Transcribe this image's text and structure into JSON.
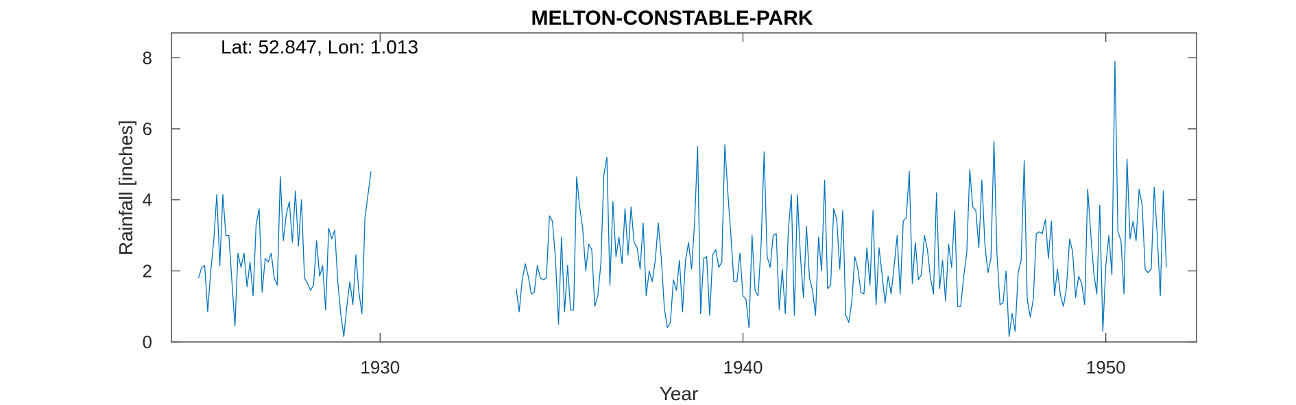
{
  "chart_data": {
    "type": "line",
    "title": "MELTON-CONSTABLE-PARK",
    "annotation": "Lat: 52.847, Lon: 1.013",
    "xlabel": "Year",
    "ylabel": "Rainfall [inches]",
    "xlim": [
      1924.25,
      1952.5
    ],
    "ylim": [
      0,
      8.7
    ],
    "xticks": [
      1930,
      1940,
      1950
    ],
    "yticks": [
      0,
      2,
      4,
      6,
      8
    ],
    "grid": false,
    "line_color": "#0072BD",
    "series": [
      {
        "segments": [
          {
            "start_year": 1925.0,
            "values": [
              1.8,
              2.1,
              2.15,
              0.85,
              2.0,
              2.85,
              4.15,
              2.15,
              4.15,
              3.0,
              3.0,
              1.7,
              0.45,
              2.5,
              2.1,
              2.5,
              1.55,
              2.25,
              1.3,
              3.3,
              3.75,
              1.4,
              2.35,
              2.25,
              2.5,
              1.8,
              1.6,
              4.65,
              2.85,
              3.6,
              3.95,
              2.8,
              4.25,
              2.7,
              4.0,
              1.8,
              1.65,
              1.45,
              1.6,
              2.85,
              1.85,
              2.15,
              0.9,
              3.2,
              2.9,
              3.15,
              1.7,
              0.8,
              0.15,
              1.0,
              1.7,
              1.05,
              2.45,
              1.4,
              0.8,
              3.5,
              4.15,
              4.8
            ]
          },
          {
            "start_year": 1933.75,
            "values": [
              1.5,
              0.85,
              1.75,
              2.2,
              1.85,
              1.35,
              1.4,
              2.15,
              1.8,
              1.75,
              1.8,
              3.55,
              3.4,
              2.35,
              0.5,
              2.95,
              0.85,
              2.15,
              0.9,
              0.9,
              4.65,
              3.8,
              3.2,
              2.0,
              2.75,
              2.6,
              1.0,
              1.3,
              2.2,
              4.7,
              5.2,
              1.6,
              3.95,
              2.4,
              2.95,
              2.2,
              3.75,
              2.45,
              3.8,
              2.8,
              2.65,
              2.05,
              3.35,
              1.3,
              2.0,
              1.7,
              2.3,
              3.35,
              2.35,
              0.95,
              0.4,
              0.55,
              1.75,
              1.45,
              2.3,
              0.85,
              2.3,
              2.8,
              2.05,
              3.35,
              5.5,
              0.8,
              2.35,
              2.4,
              0.75,
              2.45,
              2.6,
              2.1,
              2.25,
              5.55,
              4.2,
              3.0,
              1.7,
              1.7,
              2.5,
              1.3,
              1.2,
              0.4,
              3.0,
              1.45,
              1.3,
              2.75,
              5.35,
              2.4,
              2.1,
              3.0,
              3.05,
              0.9,
              2.05,
              0.8,
              3.15,
              4.15,
              0.75,
              4.15,
              2.4,
              1.25,
              3.25,
              1.8,
              1.45,
              0.75,
              2.95,
              2.0,
              4.55,
              1.5,
              1.6,
              3.75,
              3.45,
              2.05,
              3.7,
              0.75,
              0.55,
              1.15,
              2.4,
              2.05,
              1.4,
              1.35,
              2.65,
              1.6,
              3.7,
              1.05,
              2.65,
              1.9,
              1.1,
              1.85,
              1.35,
              2.15,
              3.0,
              1.35,
              3.4,
              3.5,
              4.8,
              1.65,
              2.8,
              1.75,
              1.9,
              3.0,
              2.6,
              1.8,
              1.35,
              4.2,
              1.5,
              2.3,
              1.15,
              2.75,
              2.1,
              3.7,
              1.0,
              1.0,
              1.85,
              2.5,
              4.85,
              3.8,
              3.7,
              2.65,
              4.55,
              2.75,
              1.95,
              2.35,
              5.65,
              2.45,
              1.05,
              1.1,
              2.0,
              0.15,
              0.8,
              0.3,
              1.95,
              2.3,
              5.1,
              1.2,
              0.7,
              1.2,
              3.05,
              3.1,
              3.05,
              3.45,
              2.35,
              3.4,
              1.3,
              2.05,
              1.3,
              1.0,
              1.55,
              2.9,
              2.55,
              1.25,
              1.85,
              1.65,
              1.05,
              4.3,
              3.05,
              1.95,
              1.35,
              3.85,
              0.3,
              2.15,
              3.0,
              1.9,
              7.9,
              3.1,
              2.85,
              1.35,
              5.15,
              2.9,
              3.4,
              2.85,
              4.3,
              3.85,
              2.05,
              1.95,
              2.05,
              4.35,
              3.0,
              1.3,
              4.25,
              2.1
            ]
          }
        ]
      }
    ]
  }
}
